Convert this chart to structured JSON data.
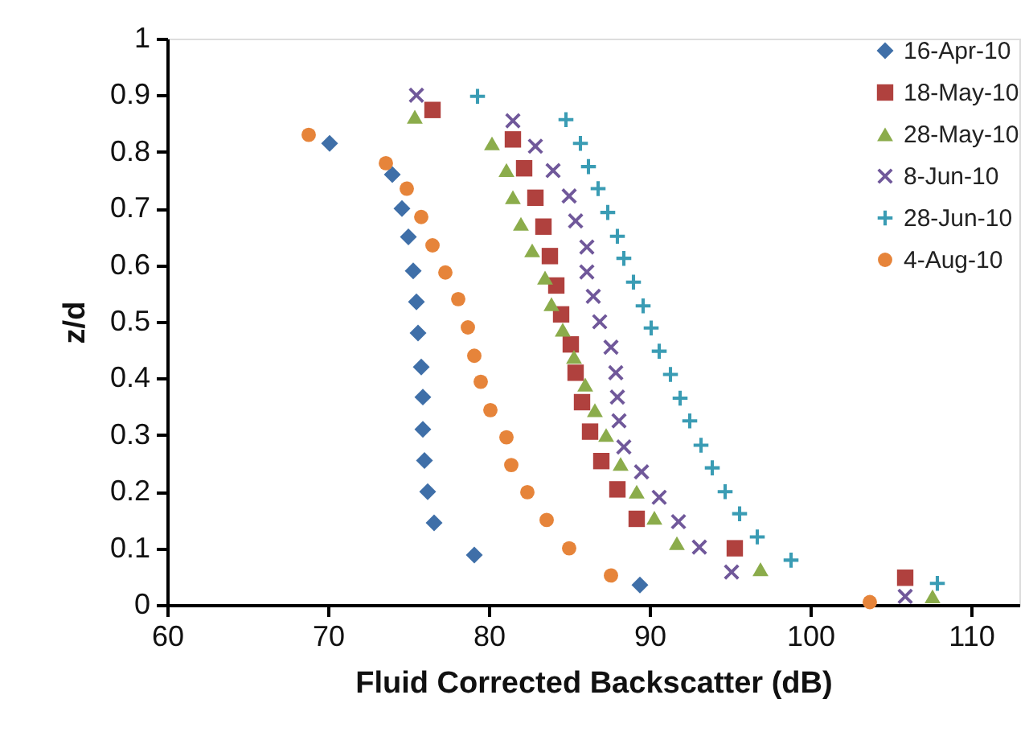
{
  "chart_data": {
    "type": "scatter",
    "xlabel": "Fluid Corrected Backscatter (dB)",
    "ylabel": "z/d",
    "xlim": [
      60,
      113
    ],
    "xticks": [
      60,
      70,
      80,
      90,
      100,
      110
    ],
    "ylim": [
      0,
      1
    ],
    "yticks": [
      0,
      0.1,
      0.2,
      0.3,
      0.4,
      0.5,
      0.6,
      0.7,
      0.8,
      0.9,
      1
    ],
    "grid": false,
    "legend": "top right",
    "series": [
      {
        "name": "16-Apr-10",
        "color": "#3f6fa8",
        "marker": "diamond",
        "x": [
          70.1,
          74.0,
          74.6,
          75.0,
          75.3,
          75.5,
          75.6,
          75.8,
          75.9,
          75.9,
          76.0,
          76.2,
          76.6,
          79.1,
          89.4
        ],
        "values": [
          0.815,
          0.76,
          0.7,
          0.65,
          0.59,
          0.535,
          0.48,
          0.42,
          0.367,
          0.31,
          0.255,
          0.2,
          0.145,
          0.088,
          0.035
        ]
      },
      {
        "name": "18-May-10",
        "color": "#b0413e",
        "marker": "square",
        "x": [
          76.5,
          81.5,
          82.2,
          82.9,
          83.4,
          83.8,
          84.2,
          84.5,
          85.1,
          85.4,
          85.8,
          86.3,
          87.0,
          88.0,
          89.2,
          95.3,
          105.9
        ],
        "values": [
          0.874,
          0.822,
          0.771,
          0.719,
          0.668,
          0.616,
          0.564,
          0.513,
          0.46,
          0.41,
          0.358,
          0.306,
          0.254,
          0.204,
          0.152,
          0.1,
          0.048
        ]
      },
      {
        "name": "28-May-10",
        "color": "#8bac4b",
        "marker": "triangle",
        "x": [
          75.4,
          80.2,
          81.1,
          81.5,
          82.0,
          82.7,
          83.5,
          83.9,
          84.6,
          85.3,
          86.0,
          86.6,
          87.3,
          88.2,
          89.2,
          90.3,
          91.7,
          96.9,
          107.6
        ],
        "values": [
          0.862,
          0.815,
          0.768,
          0.72,
          0.673,
          0.626,
          0.578,
          0.531,
          0.486,
          0.438,
          0.389,
          0.344,
          0.3,
          0.249,
          0.2,
          0.154,
          0.109,
          0.063,
          0.015
        ]
      },
      {
        "name": "8-Jun-10",
        "color": "#70589a",
        "marker": "x",
        "x": [
          75.5,
          81.5,
          82.9,
          84.0,
          85.0,
          85.4,
          86.1,
          86.1,
          86.5,
          86.9,
          87.6,
          87.9,
          88.0,
          88.1,
          88.4,
          89.5,
          90.6,
          91.8,
          93.1,
          95.1,
          105.9
        ],
        "values": [
          0.9,
          0.855,
          0.81,
          0.767,
          0.722,
          0.678,
          0.632,
          0.588,
          0.545,
          0.5,
          0.455,
          0.41,
          0.367,
          0.325,
          0.279,
          0.235,
          0.19,
          0.147,
          0.102,
          0.058,
          0.015
        ]
      },
      {
        "name": "28-Jun-10",
        "color": "#3a9cb4",
        "marker": "cross",
        "x": [
          79.3,
          84.8,
          85.7,
          86.2,
          86.8,
          87.4,
          88.0,
          88.4,
          89.0,
          89.6,
          90.1,
          90.6,
          91.3,
          91.9,
          92.5,
          93.2,
          93.9,
          94.7,
          95.6,
          96.7,
          98.8,
          107.9
        ],
        "values": [
          0.898,
          0.857,
          0.815,
          0.774,
          0.735,
          0.693,
          0.651,
          0.612,
          0.57,
          0.528,
          0.489,
          0.448,
          0.407,
          0.365,
          0.325,
          0.282,
          0.242,
          0.2,
          0.161,
          0.12,
          0.079,
          0.038
        ]
      },
      {
        "name": "4-Aug-10",
        "color": "#e6843a",
        "marker": "circle",
        "x": [
          68.8,
          73.6,
          74.9,
          75.8,
          76.5,
          77.3,
          78.1,
          78.7,
          79.1,
          79.5,
          80.1,
          81.1,
          81.4,
          82.4,
          83.6,
          85.0,
          87.6,
          103.7
        ],
        "values": [
          0.83,
          0.78,
          0.735,
          0.685,
          0.635,
          0.587,
          0.54,
          0.49,
          0.44,
          0.394,
          0.344,
          0.296,
          0.247,
          0.199,
          0.15,
          0.1,
          0.052,
          0.005
        ]
      }
    ]
  }
}
